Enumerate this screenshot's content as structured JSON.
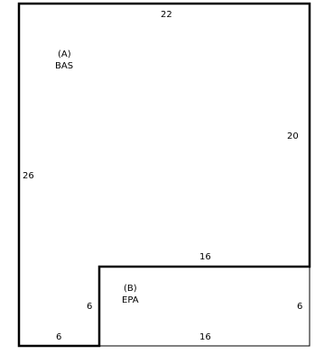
{
  "areas": [
    {
      "code": "(A)",
      "name": "BAS"
    },
    {
      "code": "(B)",
      "name": "EPA"
    }
  ],
  "dimensions": {
    "bas_top": "22",
    "bas_left": "26",
    "bas_right": "20",
    "bas_bottom_left": "6",
    "bas_notch_vertical": "6",
    "shared_wall": "16",
    "epa_right": "6",
    "epa_bottom": "16"
  },
  "colors": {
    "line": "#000000",
    "background": "#ffffff"
  }
}
